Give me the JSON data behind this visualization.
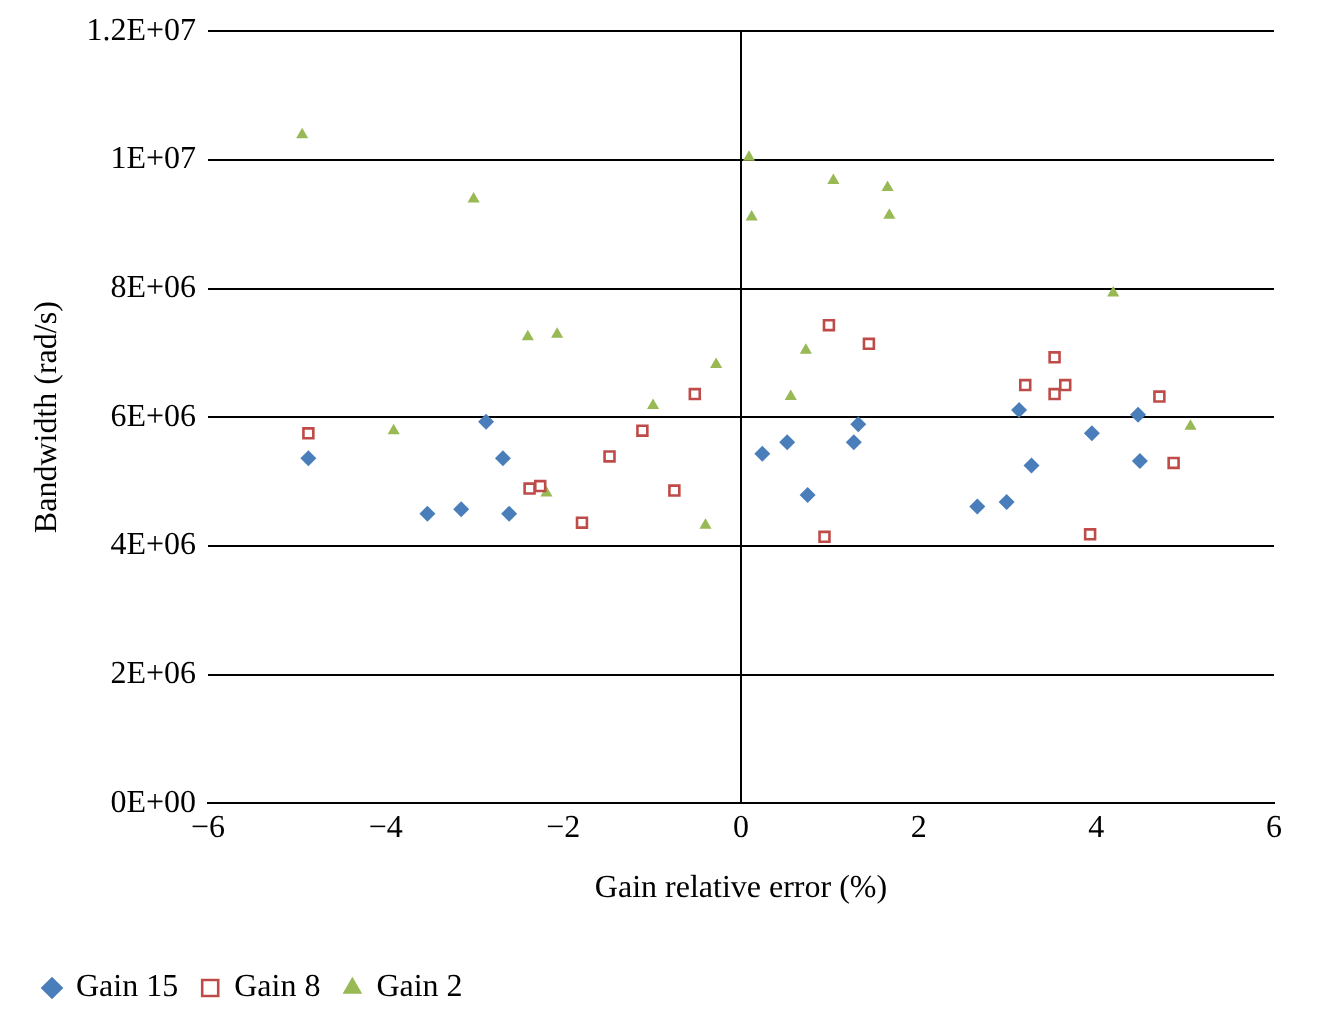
{
  "chart_data": {
    "type": "scatter",
    "xlabel": "Gain relative error (%)",
    "ylabel": "Bandwidth (rad/s)",
    "xlim": [
      -6,
      6
    ],
    "xticks": [
      {
        "value": -6,
        "label": "−6"
      },
      {
        "value": -4,
        "label": "−4"
      },
      {
        "value": -2,
        "label": "−2"
      },
      0,
      2,
      4,
      6
    ],
    "ylim": [
      0,
      12000000
    ],
    "yticks": [
      {
        "value": 0,
        "label": "0E+00"
      },
      {
        "value": 2000000,
        "label": "2E+06"
      },
      {
        "value": 4000000,
        "label": "4E+06"
      },
      {
        "value": 6000000,
        "label": "6E+06"
      },
      {
        "value": 8000000,
        "label": "8E+06"
      },
      {
        "value": 10000000,
        "label": "1E+07"
      },
      {
        "value": 12000000,
        "label": "1.2E+07"
      }
    ],
    "grid": "y",
    "legend": "bottom",
    "ref_lines": [
      {
        "axis": "x",
        "value": 0
      }
    ],
    "series": [
      {
        "name": "Gain 15",
        "color": "#4a7ebb",
        "marker": "diamond",
        "x": [
          -4.87,
          -3.53,
          -3.15,
          -2.87,
          -2.68,
          -2.61,
          0.24,
          0.52,
          0.75,
          1.27,
          1.32,
          2.66,
          2.99,
          3.13,
          3.27,
          3.95,
          4.47,
          4.49
        ],
        "values": [
          5360000,
          4500000,
          4570000,
          5930000,
          5360000,
          4500000,
          5430000,
          5610000,
          4790000,
          5610000,
          5890000,
          4610000,
          4680000,
          6110000,
          5250000,
          5750000,
          6040000,
          5320000
        ]
      },
      {
        "name": "Gain 8",
        "color": "#be4b48",
        "marker": "square",
        "x": [
          -4.87,
          -2.38,
          -2.26,
          -1.79,
          -1.48,
          -1.11,
          -0.75,
          -0.52,
          0.99,
          1.44,
          0.94,
          3.2,
          3.53,
          3.53,
          3.65,
          3.93,
          4.71,
          4.87
        ],
        "values": [
          5750000,
          4890000,
          4930000,
          4360000,
          5390000,
          5790000,
          4860000,
          6360000,
          7430000,
          7140000,
          4140000,
          6500000,
          6930000,
          6360000,
          6500000,
          4180000,
          6320000,
          5290000
        ]
      },
      {
        "name": "Gain 2",
        "color": "#98b954",
        "marker": "triangle",
        "x": [
          -4.94,
          -3.01,
          -3.91,
          -2.4,
          -2.07,
          -2.19,
          -0.99,
          -0.28,
          -0.4,
          0.09,
          0.12,
          1.04,
          1.65,
          1.67,
          0.73,
          0.56,
          4.19,
          5.06
        ],
        "values": [
          10390000,
          9390000,
          5790000,
          7250000,
          7290000,
          4820000,
          6180000,
          6820000,
          4320000,
          10040000,
          9110000,
          9680000,
          9570000,
          9140000,
          7040000,
          6320000,
          7930000,
          5860000
        ]
      }
    ]
  }
}
